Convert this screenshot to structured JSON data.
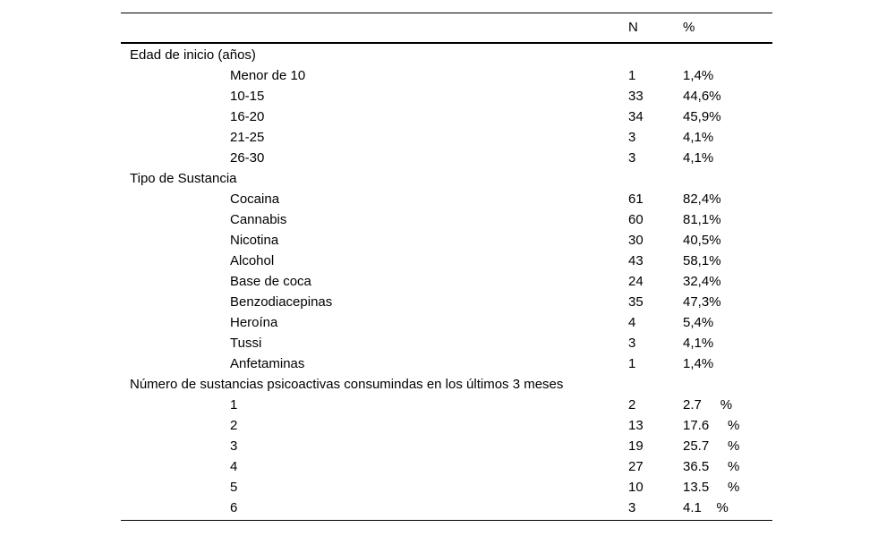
{
  "table": {
    "columns": {
      "n": "N",
      "pct": "%"
    },
    "sections": [
      {
        "label": "Edad de inicio (años)",
        "rows": [
          {
            "label": "Menor de 10",
            "n": "1",
            "pct": "1,4%"
          },
          {
            "label": "10-15",
            "n": "33",
            "pct": "44,6%"
          },
          {
            "label": "16-20",
            "n": "34",
            "pct": "45,9%"
          },
          {
            "label": "21-25",
            "n": "3",
            "pct": "4,1%"
          },
          {
            "label": "26-30",
            "n": "3",
            "pct": "4,1%"
          }
        ]
      },
      {
        "label": "Tipo de Sustancia",
        "rows": [
          {
            "label": "Cocaina",
            "n": "61",
            "pct": "82,4%"
          },
          {
            "label": "Cannabis",
            "n": "60",
            "pct": "81,1%"
          },
          {
            "label": "Nicotina",
            "n": "30",
            "pct": "40,5%"
          },
          {
            "label": "Alcohol",
            "n": "43",
            "pct": "58,1%"
          },
          {
            "label": "Base de coca",
            "n": "24",
            "pct": "32,4%"
          },
          {
            "label": "Benzodiacepinas",
            "n": "35",
            "pct": "47,3%"
          },
          {
            "label": "Heroína",
            "n": "4",
            "pct": "5,4%"
          },
          {
            "label": "Tussi",
            "n": "3",
            "pct": "4,1%"
          },
          {
            "label": "Anfetaminas",
            "n": "1",
            "pct": "1,4%"
          }
        ]
      },
      {
        "label": "Número de sustancias psicoactivas consumindas en los últimos 3 meses",
        "rows": [
          {
            "label": "1",
            "n": "2",
            "pct": "2.7     %"
          },
          {
            "label": "2",
            "n": "13",
            "pct": "17.6     %"
          },
          {
            "label": "3",
            "n": "19",
            "pct": "25.7     %"
          },
          {
            "label": "4",
            "n": "27",
            "pct": "36.5     %"
          },
          {
            "label": "5",
            "n": "10",
            "pct": "13.5     %"
          },
          {
            "label": "6",
            "n": "3",
            "pct": "4.1    %"
          }
        ]
      }
    ]
  }
}
